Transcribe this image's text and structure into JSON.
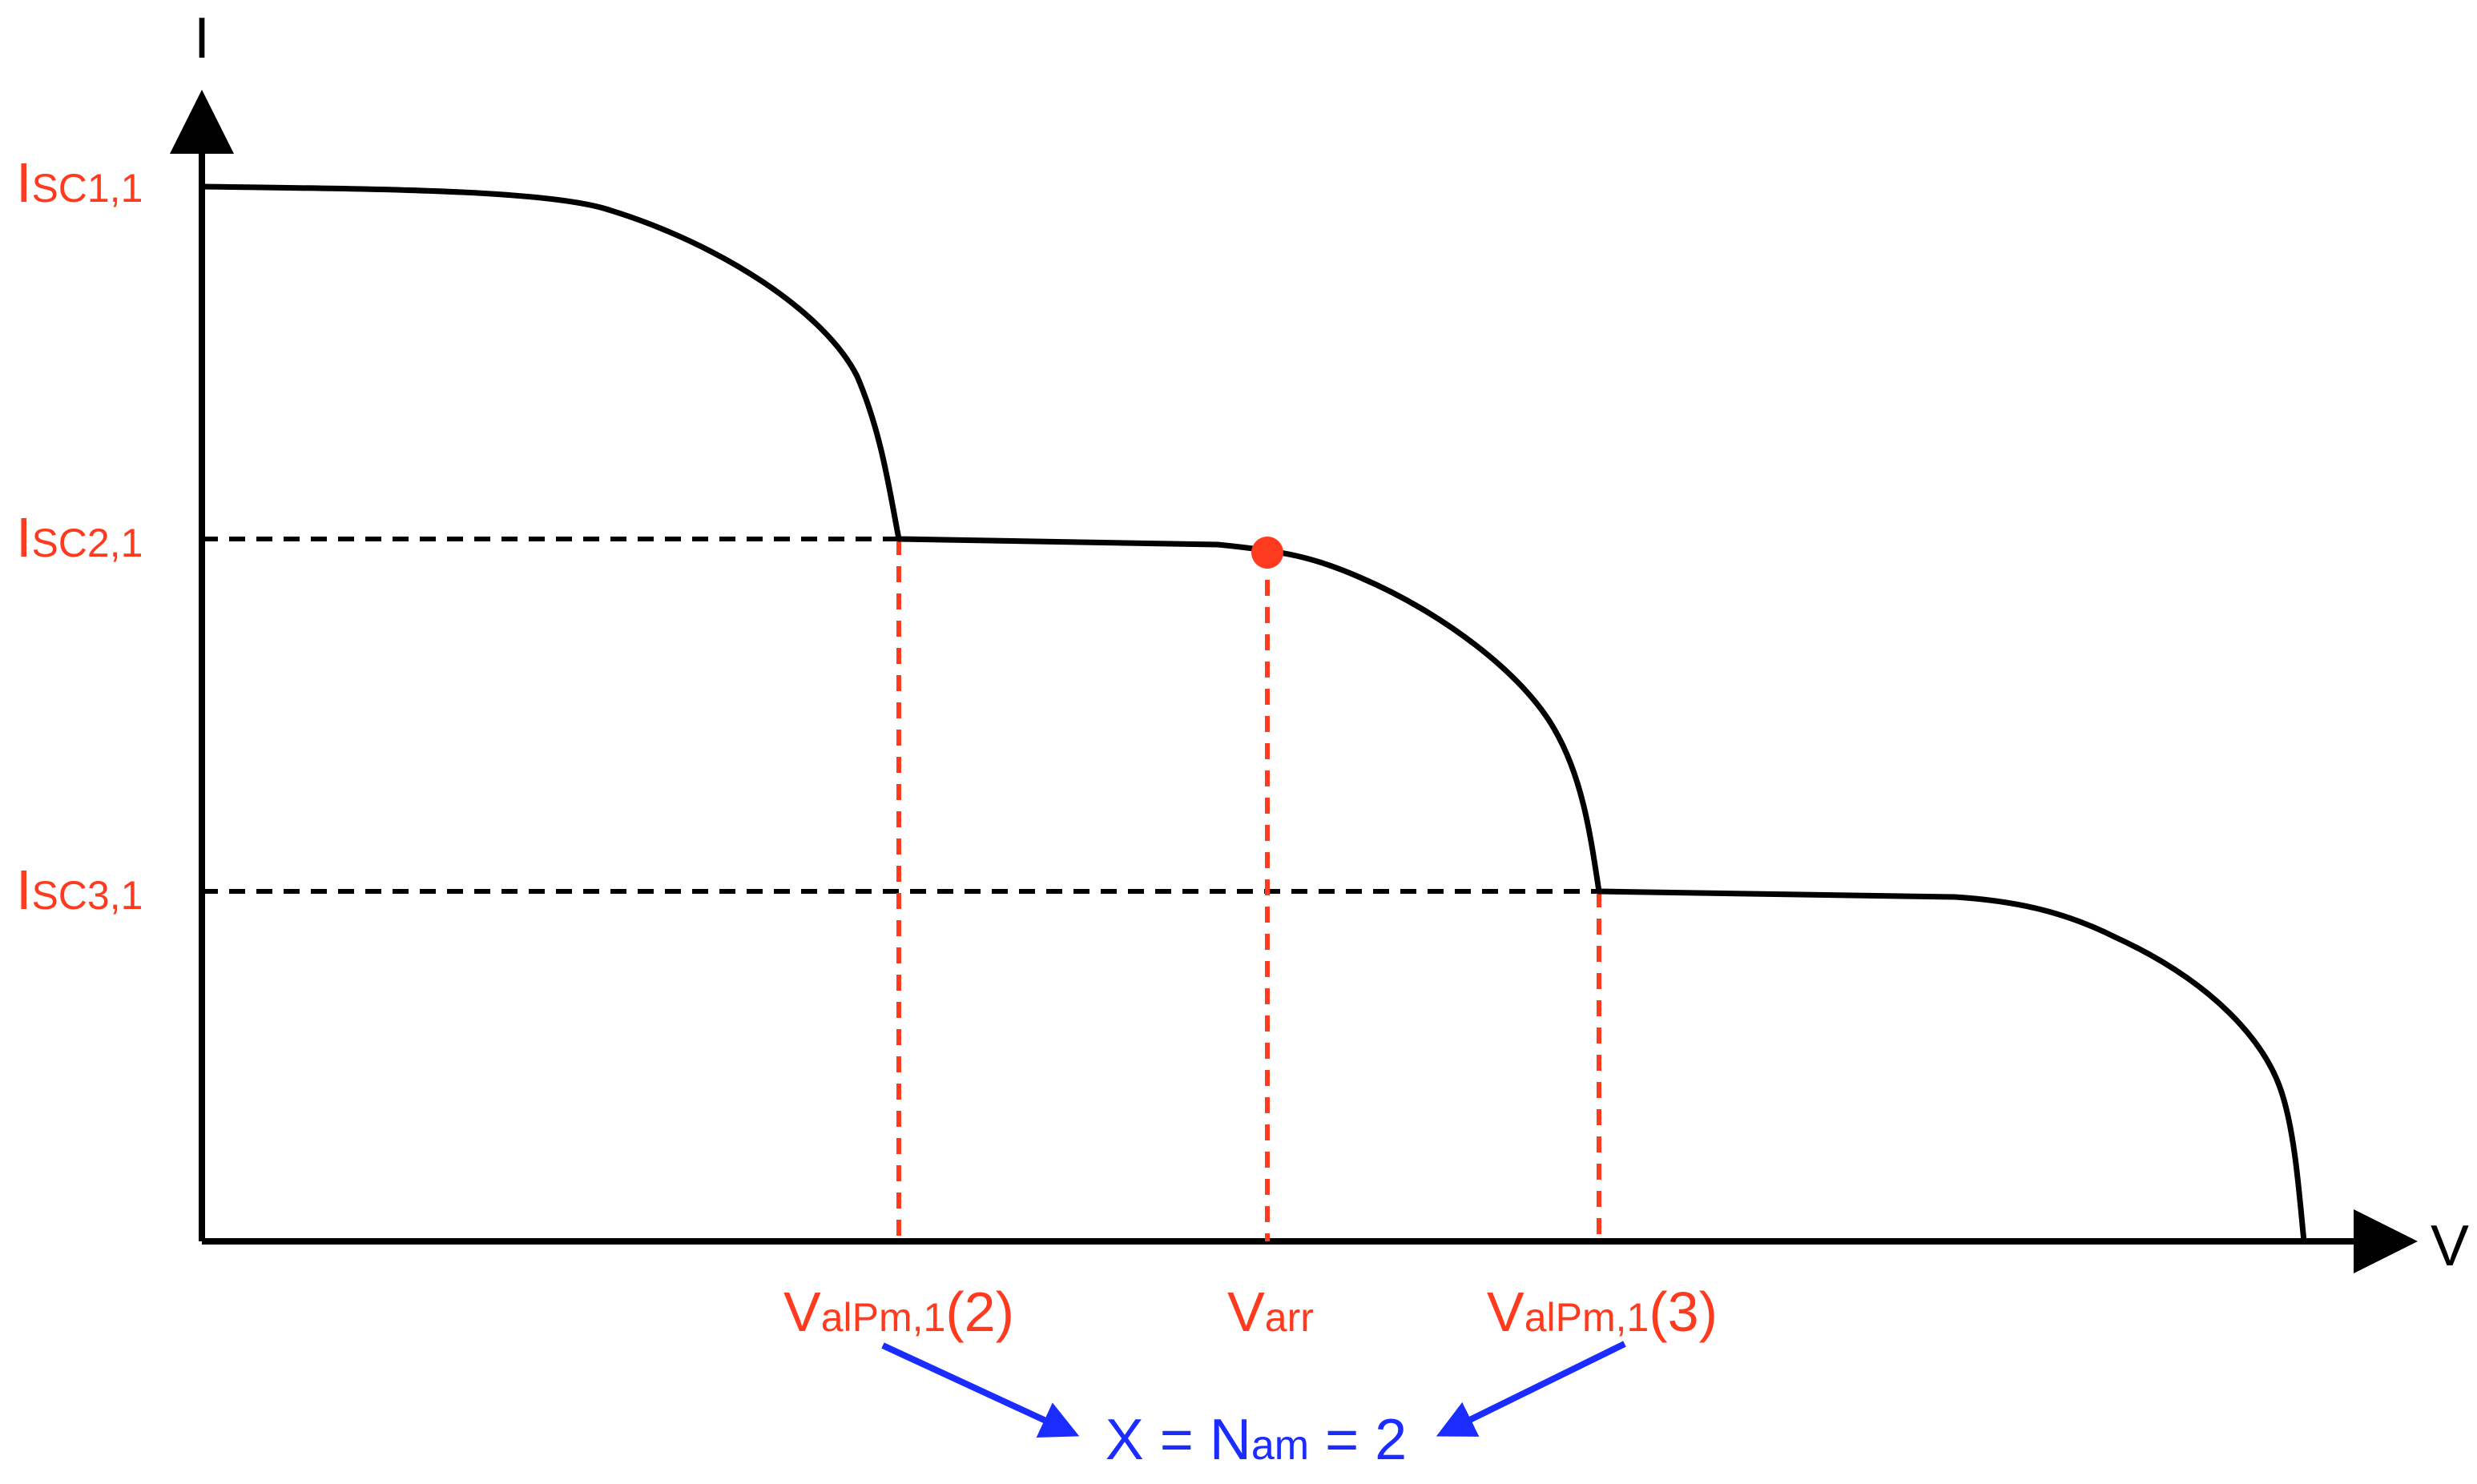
{
  "axes": {
    "y_label": "I",
    "x_label": "V"
  },
  "current_levels": [
    {
      "main": "I",
      "sub": "SC1,1"
    },
    {
      "main": "I",
      "sub": "SC2,1"
    },
    {
      "main": "I",
      "sub": "SC3,1"
    }
  ],
  "voltage_marks": [
    {
      "main": "V",
      "sub": "alPm,1",
      "suffix": "(2)"
    },
    {
      "main": "V",
      "sub": "arr",
      "suffix": ""
    },
    {
      "main": "V",
      "sub": "alPm,1",
      "suffix": "(3)"
    }
  ],
  "annotation": {
    "prefix": "X = N",
    "sub": "am",
    "suffix": " = 2"
  },
  "colors": {
    "curve": "#000000",
    "markers": "#ff3b1f",
    "annotation": "#1a2cff"
  }
}
